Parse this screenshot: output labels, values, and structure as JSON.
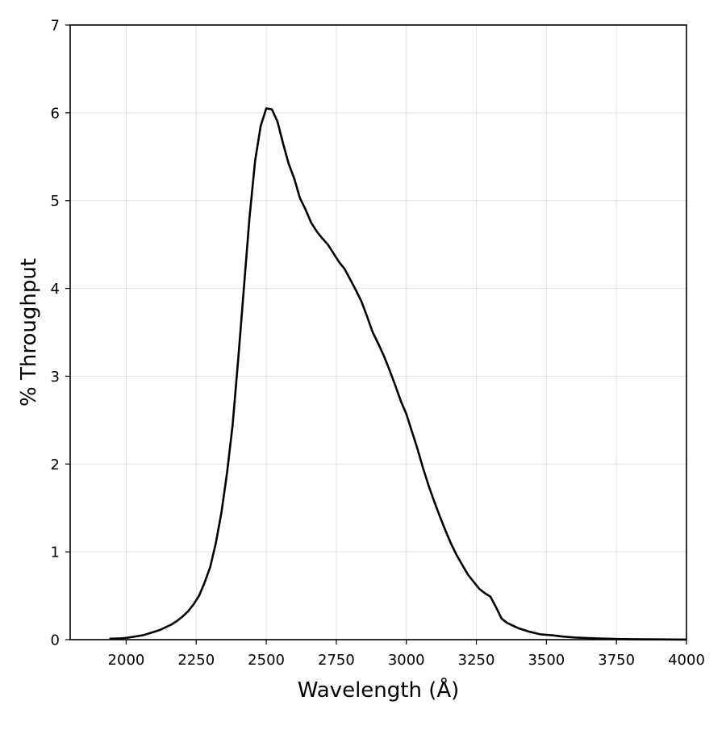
{
  "chart_data": {
    "type": "line",
    "title": "",
    "xlabel": "Wavelength (Å)",
    "ylabel": "% Throughput",
    "xlim": [
      1800,
      4000
    ],
    "ylim": [
      0,
      7
    ],
    "x_ticks": [
      2000,
      2250,
      2500,
      2750,
      3000,
      3250,
      3500,
      3750,
      4000
    ],
    "y_ticks": [
      0,
      1,
      2,
      3,
      4,
      5,
      6,
      7
    ],
    "grid": true,
    "line_color": "#000000",
    "grid_color": "#e0e0e0",
    "series": [
      {
        "x": [
          1940,
          1980,
          2000,
          2020,
          2040,
          2060,
          2080,
          2100,
          2120,
          2140,
          2160,
          2180,
          2200,
          2220,
          2240,
          2260,
          2280,
          2300,
          2320,
          2340,
          2360,
          2380,
          2400,
          2420,
          2440,
          2460,
          2480,
          2500,
          2520,
          2540,
          2560,
          2580,
          2600,
          2620,
          2640,
          2660,
          2680,
          2700,
          2720,
          2740,
          2760,
          2780,
          2800,
          2820,
          2840,
          2860,
          2880,
          2900,
          2920,
          2940,
          2960,
          2980,
          3000,
          3020,
          3040,
          3060,
          3080,
          3100,
          3120,
          3140,
          3160,
          3180,
          3200,
          3220,
          3240,
          3260,
          3280,
          3300,
          3320,
          3340,
          3360,
          3380,
          3400,
          3420,
          3440,
          3460,
          3480,
          3500,
          3520,
          3560,
          3600,
          3650,
          3700,
          3750,
          3800,
          3850,
          3900,
          3950,
          4000
        ],
        "y": [
          0.01,
          0.015,
          0.02,
          0.03,
          0.04,
          0.05,
          0.07,
          0.09,
          0.11,
          0.14,
          0.17,
          0.21,
          0.26,
          0.32,
          0.4,
          0.5,
          0.65,
          0.83,
          1.1,
          1.45,
          1.9,
          2.45,
          3.2,
          4.0,
          4.8,
          5.45,
          5.85,
          6.05,
          6.04,
          5.9,
          5.65,
          5.42,
          5.25,
          5.03,
          4.9,
          4.75,
          4.65,
          4.57,
          4.5,
          4.4,
          4.3,
          4.22,
          4.1,
          3.98,
          3.85,
          3.68,
          3.5,
          3.37,
          3.23,
          3.07,
          2.9,
          2.72,
          2.57,
          2.37,
          2.17,
          1.95,
          1.75,
          1.57,
          1.4,
          1.24,
          1.09,
          0.96,
          0.85,
          0.74,
          0.66,
          0.58,
          0.53,
          0.49,
          0.37,
          0.24,
          0.19,
          0.16,
          0.13,
          0.11,
          0.09,
          0.075,
          0.06,
          0.055,
          0.05,
          0.035,
          0.025,
          0.018,
          0.012,
          0.008,
          0.005,
          0.004,
          0.003,
          0.002,
          0.001
        ]
      }
    ]
  }
}
